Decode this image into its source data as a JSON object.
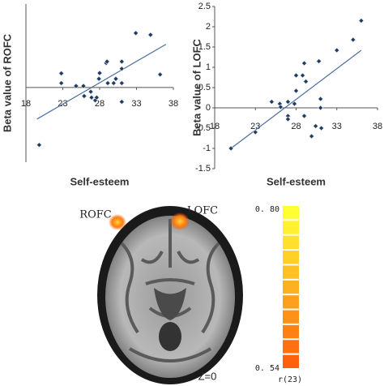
{
  "chart_data": [
    {
      "type": "scatter",
      "ylabel": "Beta value of ROFC",
      "xlabel": "Self-esteem",
      "x": [
        19.8,
        22.8,
        22.8,
        24.8,
        25.8,
        25.9,
        26.8,
        26.9,
        27.4,
        27.6,
        27.9,
        28,
        28.9,
        29,
        29.1,
        29.9,
        30.2,
        31,
        31,
        31,
        31,
        32.9,
        34.9,
        36.2
      ],
      "y": [
        -2.0,
        0.49,
        0.15,
        0.05,
        0.05,
        -0.3,
        -0.15,
        -0.35,
        -0.45,
        -0.35,
        0.3,
        0.5,
        0.85,
        0.9,
        0.15,
        0.15,
        0.3,
        0.65,
        0.9,
        -0.5,
        0.15,
        1.89,
        1.83,
        0.45
      ],
      "color": "#1f3a5f",
      "trendline": {
        "x": [
          19.5,
          37
        ],
        "y": [
          -1.1,
          1.5
        ],
        "color": "#4a6da0"
      },
      "xlim": [
        18,
        38
      ],
      "xticks": [
        18,
        23,
        28,
        33,
        38
      ],
      "ylim": [
        -2.6,
        2.9
      ]
    },
    {
      "type": "scatter",
      "ylabel": "Beta value of LOFC",
      "xlabel": "Self-esteem",
      "x": [
        20,
        23,
        25,
        26,
        26.1,
        27,
        27,
        27,
        27.8,
        28,
        28,
        28.8,
        29,
        29,
        29.2,
        29.9,
        30.4,
        30.8,
        31,
        31,
        31.1,
        33,
        35,
        36
      ],
      "y": [
        -1.0,
        -0.6,
        0.15,
        0.1,
        0.02,
        0.15,
        -0.2,
        -0.28,
        0.1,
        0.42,
        0.8,
        0.8,
        1.1,
        -0.2,
        0.65,
        -0.7,
        -0.45,
        1.15,
        0.22,
        0,
        -0.5,
        1.42,
        1.68,
        2.15
      ],
      "color": "#1f3a5f",
      "trendline": {
        "x": [
          20,
          36
        ],
        "y": [
          -1.0,
          1.42
        ],
        "color": "#4a6da0"
      },
      "xlim": [
        18,
        38
      ],
      "xticks": [
        18,
        23,
        28,
        33,
        38
      ],
      "ylim": [
        -1.5,
        2.5
      ],
      "yticks": [
        2.5,
        2,
        1.5,
        1,
        0.5,
        0,
        -0.5,
        -1,
        -1.5
      ]
    }
  ],
  "brain": {
    "left_label": "ROFC",
    "right_label": "LOFC",
    "slice": "Z=0"
  },
  "colorbar": {
    "max_label": "0. 80",
    "min_label": "0. 54",
    "label": "r(23)",
    "colors": [
      "#ffff33",
      "#fff030",
      "#ffe02c",
      "#ffd028",
      "#ffc024",
      "#ffb020",
      "#ffa01c",
      "#ff9018",
      "#ff8014",
      "#ff7010",
      "#ff600c"
    ]
  }
}
